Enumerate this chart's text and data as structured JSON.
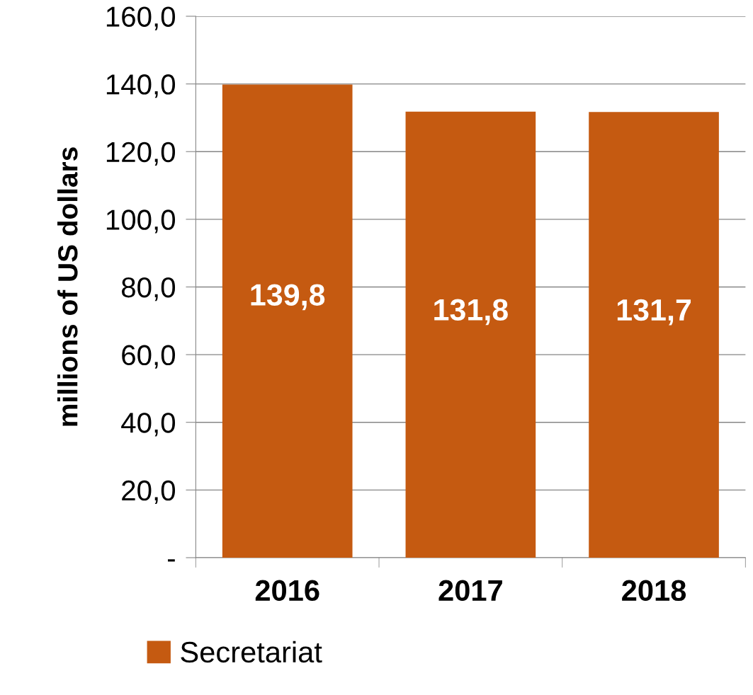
{
  "chart_data": {
    "type": "bar",
    "ylabel": "millions of US dollars",
    "categories": [
      "2016",
      "2017",
      "2018"
    ],
    "series": [
      {
        "name": "Secretariat",
        "color": "#c55a11",
        "values": [
          139.8,
          131.8,
          131.7
        ],
        "value_labels": [
          "139,8",
          "131,8",
          "131,7"
        ]
      }
    ],
    "ylim": [
      0,
      160
    ],
    "yticks": [
      {
        "value": 0,
        "label": "-"
      },
      {
        "value": 20,
        "label": "20,0"
      },
      {
        "value": 40,
        "label": "40,0"
      },
      {
        "value": 60,
        "label": "60,0"
      },
      {
        "value": 80,
        "label": "80,0"
      },
      {
        "value": 100,
        "label": "100,0"
      },
      {
        "value": 120,
        "label": "120,0"
      },
      {
        "value": 140,
        "label": "140,0"
      },
      {
        "value": 160,
        "label": "160,0"
      }
    ],
    "grid": "y",
    "legend": "bottom"
  }
}
